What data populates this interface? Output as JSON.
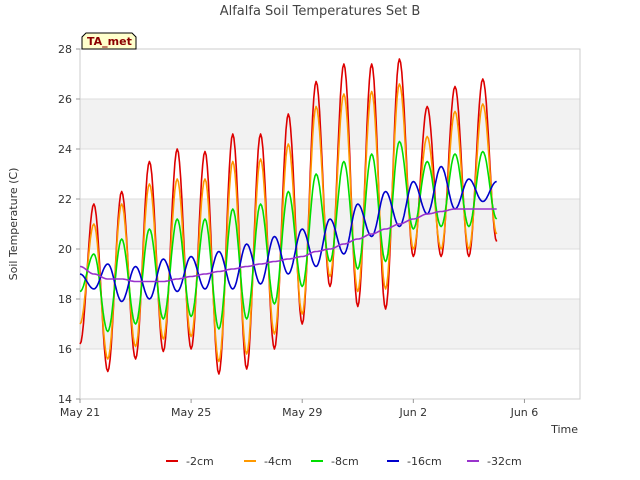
{
  "chart_data": {
    "type": "line",
    "title": "Alfalfa Soil Temperatures Set B",
    "xlabel": "Time",
    "ylabel": "Soil Temperature (C)",
    "badge": "TA_met",
    "ylim": [
      14,
      28
    ],
    "xlim": [
      "2021-05-21",
      "2021-06-08"
    ],
    "yticks": [
      "14",
      "16",
      "18",
      "20",
      "22",
      "24",
      "26",
      "28"
    ],
    "xticks": [
      "May 21",
      "May 25",
      "May 29",
      "Jun 2",
      "Jun 6"
    ],
    "xtick_dates": [
      "2021-05-21",
      "2021-05-25",
      "2021-05-29",
      "2021-06-02",
      "2021-06-06"
    ],
    "grid": true,
    "legend_position": "bottom",
    "series": [
      {
        "name": "-2cm",
        "color": "#dd0000",
        "x_start": "2021-05-21 00:00",
        "step_hours": 12,
        "values": [
          16.2,
          21.8,
          15.1,
          22.3,
          15.6,
          23.5,
          15.9,
          24.0,
          16.0,
          23.9,
          15.0,
          24.6,
          15.2,
          24.6,
          16.0,
          25.4,
          17.0,
          26.7,
          18.5,
          27.4,
          17.7,
          27.4,
          17.6,
          27.6,
          19.7,
          25.7,
          19.7,
          26.5,
          19.7,
          26.8,
          20.3
        ]
      },
      {
        "name": "-4cm",
        "color": "#ff9900",
        "x_start": "2021-05-21 00:00",
        "step_hours": 12,
        "values": [
          17.0,
          21.0,
          15.6,
          21.8,
          16.1,
          22.6,
          16.4,
          22.8,
          16.5,
          22.8,
          15.5,
          23.5,
          15.8,
          23.6,
          16.6,
          24.2,
          17.4,
          25.7,
          18.9,
          26.2,
          18.3,
          26.3,
          18.4,
          26.6,
          20.0,
          24.5,
          20.0,
          25.5,
          20.0,
          25.8,
          20.6
        ]
      },
      {
        "name": "-8cm",
        "color": "#00dd00",
        "x_start": "2021-05-21 00:00",
        "step_hours": 12,
        "values": [
          18.3,
          19.8,
          16.7,
          20.4,
          17.0,
          20.8,
          17.2,
          21.2,
          17.3,
          21.2,
          16.8,
          21.6,
          17.2,
          21.8,
          17.8,
          22.3,
          18.5,
          23.0,
          19.5,
          23.5,
          19.2,
          23.8,
          19.5,
          24.3,
          20.8,
          23.5,
          20.9,
          23.8,
          20.9,
          23.9,
          21.2
        ]
      },
      {
        "name": "-16cm",
        "color": "#0000cc",
        "x_start": "2021-05-21 00:00",
        "step_hours": 12,
        "values": [
          19.0,
          18.4,
          19.4,
          17.9,
          19.3,
          18.0,
          19.6,
          18.3,
          19.7,
          18.4,
          19.9,
          18.4,
          20.2,
          18.6,
          20.5,
          19.0,
          20.8,
          19.3,
          21.2,
          19.8,
          21.8,
          20.5,
          22.3,
          20.9,
          22.7,
          21.4,
          23.3,
          21.6,
          22.8,
          21.9,
          22.7
        ]
      },
      {
        "name": "-32cm",
        "color": "#9933cc",
        "x_start": "2021-05-21 00:00",
        "step_hours": 12,
        "values": [
          19.3,
          19.0,
          18.8,
          18.8,
          18.7,
          18.7,
          18.7,
          18.8,
          18.9,
          19.0,
          19.1,
          19.2,
          19.3,
          19.4,
          19.5,
          19.6,
          19.7,
          19.9,
          20.0,
          20.2,
          20.4,
          20.6,
          20.8,
          21.0,
          21.2,
          21.4,
          21.5,
          21.6,
          21.6,
          21.6,
          21.6
        ]
      }
    ]
  }
}
